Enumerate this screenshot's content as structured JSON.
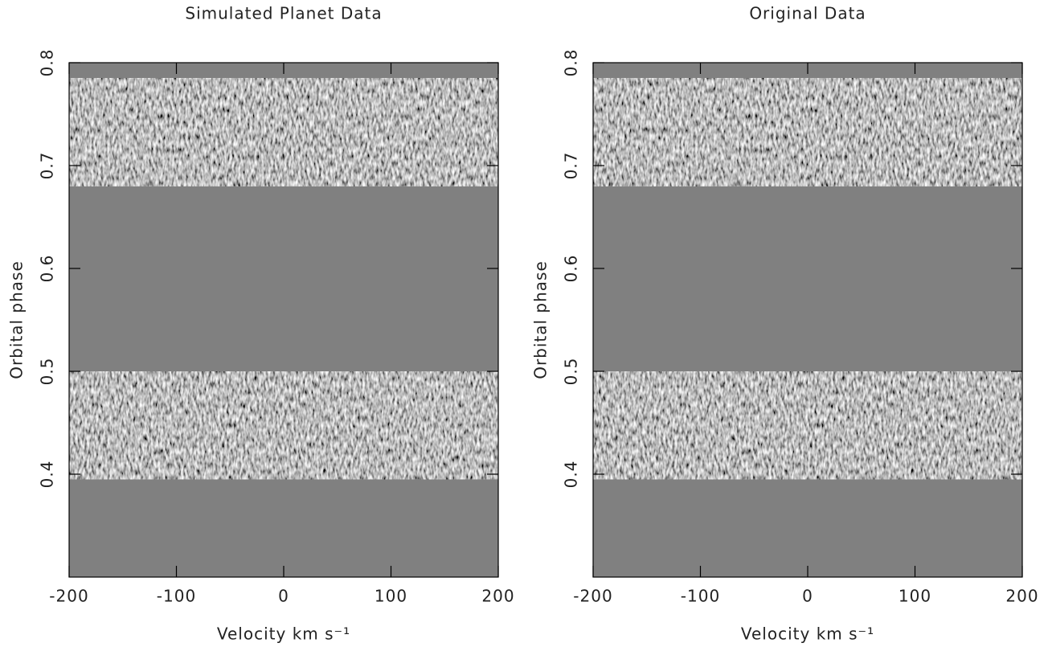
{
  "chart_data": [
    {
      "type": "image",
      "title": "Simulated Planet Data",
      "x_label": "Velocity   km s⁻¹",
      "y_label": "Orbital phase",
      "xlim": [
        -200,
        200
      ],
      "ylim": [
        0.3,
        0.8
      ],
      "xticks": [
        -200,
        -100,
        0,
        100,
        200
      ],
      "yticks": [
        0.4,
        0.5,
        0.6,
        0.7,
        0.8
      ],
      "background_color": "#808080",
      "bands": [
        [
          0.395,
          0.5
        ],
        [
          0.68,
          0.785
        ]
      ]
    },
    {
      "type": "image",
      "title": "Original Data",
      "x_label": "Velocity   km s⁻¹",
      "y_label": "Orbital phase",
      "xlim": [
        -200,
        200
      ],
      "ylim": [
        0.3,
        0.8
      ],
      "xticks": [
        -200,
        -100,
        0,
        100,
        200
      ],
      "yticks": [
        0.4,
        0.5,
        0.6,
        0.7,
        0.8
      ],
      "background_color": "#808080",
      "bands": [
        [
          0.395,
          0.5
        ],
        [
          0.68,
          0.785
        ]
      ]
    }
  ]
}
